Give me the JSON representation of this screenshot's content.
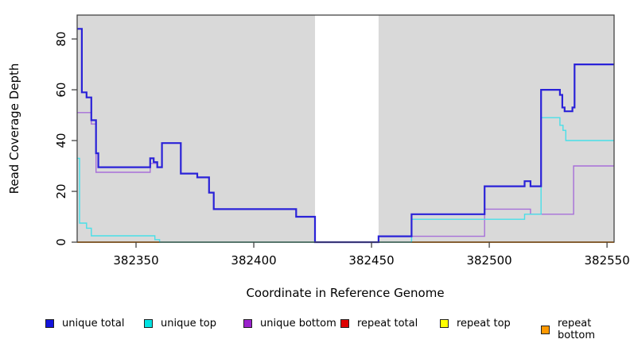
{
  "chart_data": {
    "type": "line",
    "subtype": "step-coverage",
    "title": "",
    "xlabel": "Coordinate in Reference Genome",
    "ylabel": "Read Coverage Depth",
    "xlim": [
      382325,
      382553
    ],
    "ylim": [
      0,
      89.4
    ],
    "x_ticks": [
      382350,
      382400,
      382450,
      382500,
      382550
    ],
    "x_tick_labels": [
      "382350",
      "382400",
      "382450",
      "382500",
      "382550"
    ],
    "y_ticks": [
      0,
      20,
      40,
      60,
      80
    ],
    "y_tick_labels": [
      "0",
      "20",
      "40",
      "60",
      "80"
    ],
    "plot_bg_color": "#d9d9d9",
    "axis_color": "#444444",
    "gap_region": {
      "from": 382426,
      "to": 382453,
      "fill": "#ffffff"
    },
    "series": [
      {
        "name": "unique_total",
        "color": "#2a22d8",
        "points": [
          [
            382325,
            84
          ],
          [
            382327,
            59
          ],
          [
            382329,
            57
          ],
          [
            382331,
            48
          ],
          [
            382333,
            35
          ],
          [
            382334,
            29.5
          ],
          [
            382356,
            33
          ],
          [
            382357.5,
            31.5
          ],
          [
            382359,
            29.5
          ],
          [
            382361,
            39
          ],
          [
            382369,
            27
          ],
          [
            382376,
            25.5
          ],
          [
            382381,
            19.5
          ],
          [
            382383,
            13
          ],
          [
            382418,
            10
          ],
          [
            382426,
            0
          ],
          [
            382453,
            2.3
          ],
          [
            382467,
            11
          ],
          [
            382498,
            22
          ],
          [
            382515,
            24
          ],
          [
            382517.5,
            22
          ],
          [
            382522,
            60
          ],
          [
            382530,
            58
          ],
          [
            382531,
            53
          ],
          [
            382532,
            51.5
          ],
          [
            382535.3,
            53
          ],
          [
            382536.2,
            70
          ],
          [
            382553,
            70
          ]
        ]
      },
      {
        "name": "unique_top",
        "color": "#49dfe8",
        "points": [
          [
            382325,
            33
          ],
          [
            382326,
            7.5
          ],
          [
            382329,
            5.5
          ],
          [
            382331,
            2.5
          ],
          [
            382358,
            1
          ],
          [
            382360,
            0
          ],
          [
            382467,
            9
          ],
          [
            382515,
            11
          ],
          [
            382522,
            49
          ],
          [
            382530,
            46
          ],
          [
            382531.3,
            44
          ],
          [
            382532.5,
            40
          ],
          [
            382553,
            40
          ]
        ]
      },
      {
        "name": "unique_bottom",
        "color": "#a76fd9",
        "points": [
          [
            382325,
            51
          ],
          [
            382331,
            46.5
          ],
          [
            382333,
            27.5
          ],
          [
            382356,
            31
          ],
          [
            382359,
            29.5
          ],
          [
            382361,
            39
          ],
          [
            382369,
            27
          ],
          [
            382376,
            25.5
          ],
          [
            382381,
            19.5
          ],
          [
            382383,
            13
          ],
          [
            382418,
            10
          ],
          [
            382426,
            0
          ],
          [
            382453,
            2.3
          ],
          [
            382498,
            13
          ],
          [
            382517.5,
            11
          ],
          [
            382535.8,
            30
          ],
          [
            382553,
            30
          ]
        ]
      },
      {
        "name": "repeat_total",
        "color": "#cc1111",
        "points": [
          [
            382325,
            0
          ],
          [
            382553,
            0
          ]
        ]
      },
      {
        "name": "repeat_top",
        "color": "#ffff33",
        "points": [
          [
            382325,
            0
          ],
          [
            382553,
            0
          ]
        ]
      },
      {
        "name": "repeat_bottom",
        "color": "#ff9414",
        "segments": [
          [
            [
              382325,
              0
            ],
            [
              382360,
              0
            ]
          ],
          [
            [
              382467,
              0
            ],
            [
              382553,
              0
            ]
          ]
        ]
      },
      {
        "name": "baseline_green",
        "color": "#7cc87c",
        "points": [
          [
            382360,
            0
          ],
          [
            382467,
            0
          ]
        ]
      }
    ],
    "draw_order": [
      "repeat_total",
      "repeat_top",
      "baseline_green",
      "repeat_bottom",
      "unique_bottom",
      "unique_top",
      "unique_total"
    ],
    "legend": [
      {
        "label": "unique total",
        "swatch": "#1414dc"
      },
      {
        "label": "unique top",
        "swatch": "#00e2e2"
      },
      {
        "label": "unique bottom",
        "swatch": "#9a22cc"
      },
      {
        "label": "repeat total",
        "swatch": "#dd0000"
      },
      {
        "label": "repeat top",
        "swatch": "#ffff00"
      },
      {
        "label": "repeat bottom",
        "swatch": "#ff9900"
      }
    ],
    "legend_position": "bottom"
  }
}
